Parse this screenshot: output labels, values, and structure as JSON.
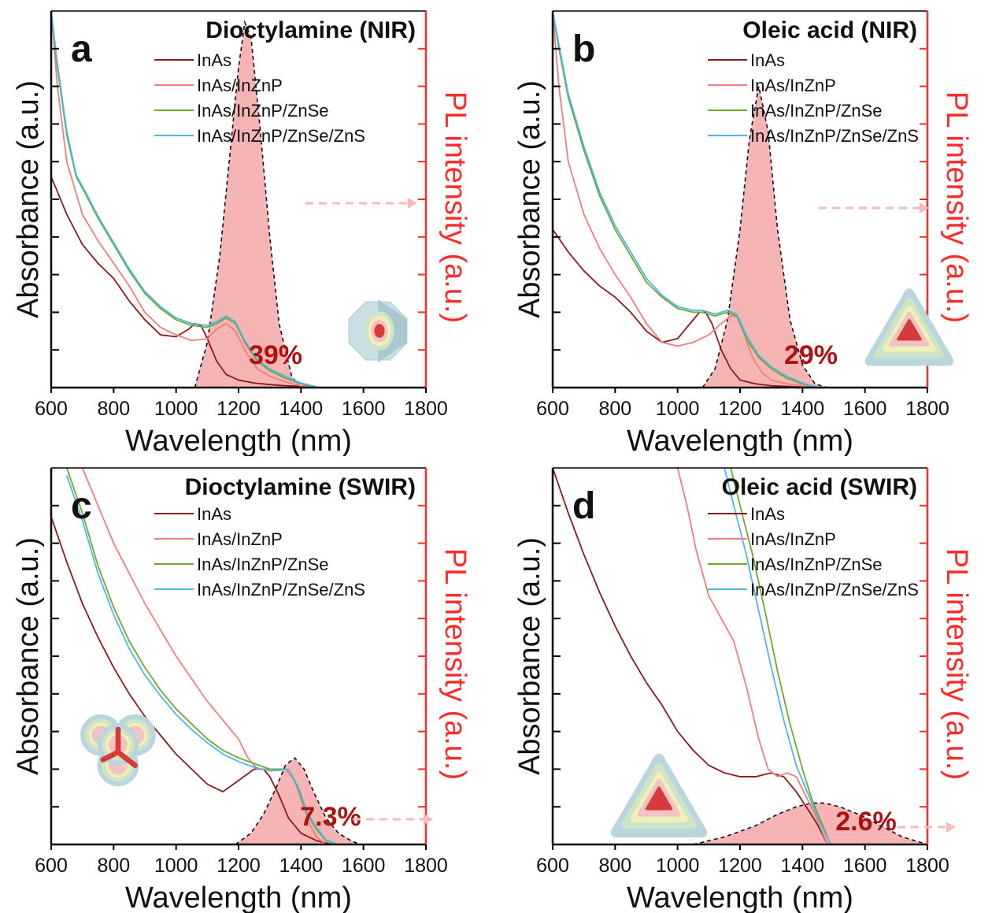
{
  "figure": {
    "xlabel": "Wavelength (nm)",
    "ylabel_left": "Absorbance (a.u.)",
    "ylabel_right": "PL intensity (a.u.)",
    "series_names": [
      "InAs",
      "InAs/InZnP",
      "InAs/InZnP/ZnSe",
      "InAs/InZnP/ZnSe/ZnS"
    ]
  },
  "colors": {
    "InAs": "#8b1a1a",
    "InAs/InZnP": "#f47c7c",
    "InAs/InZnP/ZnSe": "#6aab2e",
    "InAs/InZnP/ZnSe/ZnS": "#4db6e8",
    "pl_fill": "#f6b4b4",
    "pl_axis": "#ff2a2a",
    "percent_text": "#b01010"
  },
  "chart_data": [
    {
      "panel": "a",
      "type": "line",
      "title": "Dioctylamine (NIR)",
      "xlabel": "Wavelength (nm)",
      "ylabel": "Absorbance (a.u.)",
      "y2label": "PL intensity (a.u.)",
      "xlim": [
        600,
        1800
      ],
      "xticks": [
        600,
        800,
        1000,
        1200,
        1400,
        1600,
        1800
      ],
      "plqy": "39%",
      "inset": "faceted-sphere",
      "series": [
        {
          "name": "InAs",
          "x": [
            600,
            650,
            700,
            750,
            800,
            850,
            900,
            950,
            1000,
            1040,
            1060,
            1080,
            1100,
            1130,
            1160,
            1200,
            1250,
            1300,
            1350,
            1400,
            1450
          ],
          "y": [
            0.56,
            0.46,
            0.38,
            0.33,
            0.29,
            0.23,
            0.18,
            0.14,
            0.135,
            0.155,
            0.17,
            0.165,
            0.13,
            0.07,
            0.035,
            0.02,
            0.012,
            0.008,
            0.005,
            0.003,
            0.001
          ]
        },
        {
          "name": "InAs/InZnP",
          "x": [
            600,
            620,
            650,
            700,
            750,
            800,
            850,
            900,
            950,
            1000,
            1050,
            1100,
            1130,
            1160,
            1190,
            1220,
            1260,
            1300,
            1350,
            1400,
            1450
          ],
          "y": [
            1.0,
            0.8,
            0.6,
            0.46,
            0.39,
            0.33,
            0.27,
            0.2,
            0.16,
            0.14,
            0.125,
            0.13,
            0.155,
            0.17,
            0.15,
            0.1,
            0.05,
            0.03,
            0.015,
            0.005,
            0.0
          ]
        },
        {
          "name": "InAs/InZnP/ZnSe",
          "x": [
            600,
            620,
            650,
            680,
            700,
            750,
            800,
            850,
            900,
            950,
            1000,
            1050,
            1100,
            1130,
            1160,
            1190,
            1220,
            1260,
            1300,
            1350,
            1400,
            1450
          ],
          "y": [
            1.0,
            0.85,
            0.67,
            0.56,
            0.53,
            0.45,
            0.38,
            0.31,
            0.25,
            0.21,
            0.18,
            0.165,
            0.16,
            0.17,
            0.185,
            0.17,
            0.12,
            0.07,
            0.045,
            0.025,
            0.01,
            0.0
          ]
        },
        {
          "name": "InAs/InZnP/ZnSe/ZnS",
          "x": [
            600,
            620,
            650,
            680,
            700,
            750,
            800,
            850,
            900,
            950,
            1000,
            1050,
            1100,
            1130,
            1160,
            1190,
            1220,
            1260,
            1300,
            1350,
            1400,
            1450
          ],
          "y": [
            1.0,
            0.86,
            0.68,
            0.565,
            0.535,
            0.455,
            0.385,
            0.315,
            0.255,
            0.215,
            0.185,
            0.17,
            0.165,
            0.175,
            0.19,
            0.175,
            0.125,
            0.075,
            0.05,
            0.03,
            0.012,
            0.002
          ]
        }
      ],
      "pl": {
        "x": [
          1060,
          1100,
          1140,
          1170,
          1200,
          1220,
          1240,
          1270,
          1300,
          1330,
          1370,
          1400
        ],
        "y": [
          0.0,
          0.12,
          0.35,
          0.6,
          0.85,
          0.97,
          0.93,
          0.68,
          0.4,
          0.17,
          0.03,
          0.0
        ]
      }
    },
    {
      "panel": "b",
      "type": "line",
      "title": "Oleic acid (NIR)",
      "xlabel": "Wavelength (nm)",
      "ylabel": "Absorbance (a.u.)",
      "y2label": "PL intensity (a.u.)",
      "xlim": [
        600,
        1800
      ],
      "xticks": [
        600,
        800,
        1000,
        1200,
        1400,
        1600,
        1800
      ],
      "plqy": "29%",
      "inset": "tetrahedron",
      "series": [
        {
          "name": "InAs",
          "x": [
            600,
            650,
            700,
            750,
            800,
            850,
            900,
            950,
            1000,
            1040,
            1070,
            1090,
            1110,
            1140,
            1170,
            1200,
            1250,
            1300,
            1350,
            1400,
            1450
          ],
          "y": [
            0.42,
            0.36,
            0.31,
            0.27,
            0.24,
            0.2,
            0.15,
            0.12,
            0.13,
            0.17,
            0.2,
            0.2,
            0.17,
            0.1,
            0.05,
            0.02,
            0.01,
            0.005,
            0.003,
            0.001,
            0.0
          ]
        },
        {
          "name": "InAs/InZnP",
          "x": [
            600,
            620,
            650,
            700,
            750,
            800,
            850,
            900,
            950,
            1000,
            1050,
            1100,
            1140,
            1170,
            1190,
            1210,
            1240,
            1270,
            1300,
            1350,
            1400,
            1450
          ],
          "y": [
            1.0,
            0.8,
            0.6,
            0.46,
            0.37,
            0.3,
            0.24,
            0.17,
            0.12,
            0.11,
            0.12,
            0.14,
            0.17,
            0.19,
            0.19,
            0.15,
            0.08,
            0.04,
            0.02,
            0.01,
            0.005,
            0.0
          ]
        },
        {
          "name": "InAs/InZnP/ZnSe",
          "x": [
            600,
            620,
            650,
            700,
            750,
            800,
            850,
            900,
            950,
            1000,
            1050,
            1080,
            1120,
            1160,
            1190,
            1220,
            1260,
            1300,
            1350,
            1400,
            1450
          ],
          "y": [
            1.0,
            0.9,
            0.77,
            0.63,
            0.51,
            0.42,
            0.35,
            0.28,
            0.24,
            0.21,
            0.2,
            0.2,
            0.19,
            0.2,
            0.19,
            0.13,
            0.08,
            0.05,
            0.025,
            0.01,
            0.0
          ]
        },
        {
          "name": "InAs/InZnP/ZnSe/ZnS",
          "x": [
            600,
            620,
            650,
            700,
            750,
            800,
            850,
            900,
            950,
            1000,
            1050,
            1080,
            1120,
            1160,
            1190,
            1220,
            1260,
            1300,
            1350,
            1400,
            1450
          ],
          "y": [
            1.0,
            0.91,
            0.78,
            0.64,
            0.52,
            0.43,
            0.36,
            0.29,
            0.245,
            0.215,
            0.205,
            0.205,
            0.195,
            0.205,
            0.195,
            0.14,
            0.085,
            0.055,
            0.03,
            0.012,
            0.0
          ]
        }
      ],
      "pl": {
        "x": [
          1080,
          1120,
          1160,
          1200,
          1230,
          1260,
          1290,
          1320,
          1360,
          1400,
          1440,
          1480
        ],
        "y": [
          0.0,
          0.05,
          0.18,
          0.42,
          0.66,
          0.8,
          0.68,
          0.42,
          0.18,
          0.06,
          0.01,
          0.0
        ]
      }
    },
    {
      "panel": "c",
      "type": "line",
      "title": "Dioctylamine (SWIR)",
      "xlabel": "Wavelength (nm)",
      "ylabel": "Absorbance (a.u.)",
      "y2label": "PL intensity (a.u.)",
      "xlim": [
        600,
        1800
      ],
      "xticks": [
        600,
        800,
        1000,
        1200,
        1400,
        1600,
        1800
      ],
      "plqy": "7.3%",
      "inset": "tetrapod",
      "series": [
        {
          "name": "InAs",
          "x": [
            600,
            650,
            700,
            750,
            800,
            850,
            900,
            950,
            1000,
            1050,
            1100,
            1150,
            1200,
            1250,
            1280,
            1300,
            1330,
            1360,
            1400,
            1450,
            1500
          ],
          "y": [
            0.87,
            0.75,
            0.64,
            0.55,
            0.47,
            0.4,
            0.34,
            0.29,
            0.24,
            0.2,
            0.16,
            0.14,
            0.17,
            0.2,
            0.2,
            0.18,
            0.13,
            0.07,
            0.03,
            0.01,
            0.0
          ]
        },
        {
          "name": "InAs/InZnP",
          "x": [
            700,
            750,
            800,
            850,
            900,
            950,
            1000,
            1050,
            1100,
            1150,
            1200,
            1230,
            1260,
            1300,
            1350,
            1380,
            1400,
            1430,
            1450,
            1480
          ],
          "y": [
            1.0,
            0.9,
            0.8,
            0.72,
            0.64,
            0.57,
            0.5,
            0.44,
            0.38,
            0.33,
            0.28,
            0.23,
            0.2,
            0.2,
            0.2,
            0.17,
            0.12,
            0.05,
            0.02,
            0.0
          ]
        },
        {
          "name": "InAs/InZnP/ZnSe",
          "x": [
            650,
            700,
            750,
            800,
            850,
            900,
            950,
            1000,
            1050,
            1100,
            1150,
            1200,
            1250,
            1300,
            1330,
            1360,
            1390,
            1420,
            1450,
            1480,
            1520
          ],
          "y": [
            1.0,
            0.88,
            0.74,
            0.63,
            0.54,
            0.47,
            0.41,
            0.36,
            0.32,
            0.28,
            0.25,
            0.23,
            0.215,
            0.2,
            0.2,
            0.2,
            0.15,
            0.08,
            0.04,
            0.01,
            0.0
          ]
        },
        {
          "name": "InAs/InZnP/ZnSe/ZnS",
          "x": [
            650,
            700,
            750,
            800,
            850,
            900,
            950,
            1000,
            1050,
            1100,
            1150,
            1200,
            1250,
            1300,
            1330,
            1360,
            1390,
            1420,
            1450,
            1480,
            1520
          ],
          "y": [
            0.98,
            0.86,
            0.72,
            0.61,
            0.52,
            0.45,
            0.395,
            0.345,
            0.305,
            0.27,
            0.24,
            0.22,
            0.205,
            0.195,
            0.197,
            0.2,
            0.155,
            0.085,
            0.045,
            0.012,
            0.0
          ]
        }
      ],
      "pl": {
        "x": [
          1190,
          1240,
          1280,
          1320,
          1350,
          1380,
          1410,
          1440,
          1480,
          1520,
          1560,
          1590
        ],
        "y": [
          0.0,
          0.03,
          0.08,
          0.15,
          0.21,
          0.23,
          0.2,
          0.14,
          0.07,
          0.03,
          0.01,
          0.0
        ]
      }
    },
    {
      "panel": "d",
      "type": "line",
      "title": "Oleic acid (SWIR)",
      "xlabel": "Wavelength (nm)",
      "ylabel": "Absorbance (a.u.)",
      "y2label": "PL intensity (a.u.)",
      "xlim": [
        600,
        1800
      ],
      "xticks": [
        600,
        800,
        1000,
        1200,
        1400,
        1600,
        1800
      ],
      "plqy": "2.6%",
      "inset": "tetrahedron",
      "series": [
        {
          "name": "InAs",
          "x": [
            600,
            650,
            700,
            750,
            800,
            850,
            900,
            950,
            1000,
            1050,
            1100,
            1150,
            1200,
            1250,
            1300,
            1340,
            1380,
            1420,
            1450,
            1480
          ],
          "y": [
            1.0,
            0.88,
            0.77,
            0.67,
            0.58,
            0.5,
            0.43,
            0.37,
            0.3,
            0.25,
            0.21,
            0.19,
            0.18,
            0.18,
            0.19,
            0.18,
            0.14,
            0.09,
            0.05,
            0.0
          ]
        },
        {
          "name": "InAs/InZnP",
          "x": [
            1000,
            1030,
            1060,
            1100,
            1140,
            1180,
            1220,
            1260,
            1290,
            1320,
            1350,
            1380,
            1410,
            1440,
            1460,
            1480
          ],
          "y": [
            1.0,
            0.9,
            0.78,
            0.66,
            0.6,
            0.54,
            0.42,
            0.28,
            0.2,
            0.18,
            0.19,
            0.18,
            0.13,
            0.08,
            0.04,
            0.0
          ]
        },
        {
          "name": "InAs/InZnP/ZnSe",
          "x": [
            1170,
            1200,
            1240,
            1280,
            1320,
            1360,
            1400,
            1430,
            1460,
            1490
          ],
          "y": [
            1.0,
            0.9,
            0.77,
            0.62,
            0.46,
            0.32,
            0.2,
            0.12,
            0.06,
            0.0
          ]
        },
        {
          "name": "InAs/InZnP/ZnSe/ZnS",
          "x": [
            1150,
            1180,
            1220,
            1260,
            1300,
            1340,
            1380,
            1420,
            1450,
            1490
          ],
          "y": [
            1.0,
            0.9,
            0.77,
            0.62,
            0.47,
            0.33,
            0.21,
            0.13,
            0.07,
            0.0
          ]
        }
      ],
      "pl": {
        "x": [
          1050,
          1150,
          1250,
          1320,
          1380,
          1430,
          1470,
          1520,
          1580,
          1650,
          1720,
          1800
        ],
        "y": [
          0.0,
          0.02,
          0.05,
          0.08,
          0.1,
          0.11,
          0.11,
          0.1,
          0.08,
          0.05,
          0.02,
          0.0
        ]
      }
    }
  ]
}
